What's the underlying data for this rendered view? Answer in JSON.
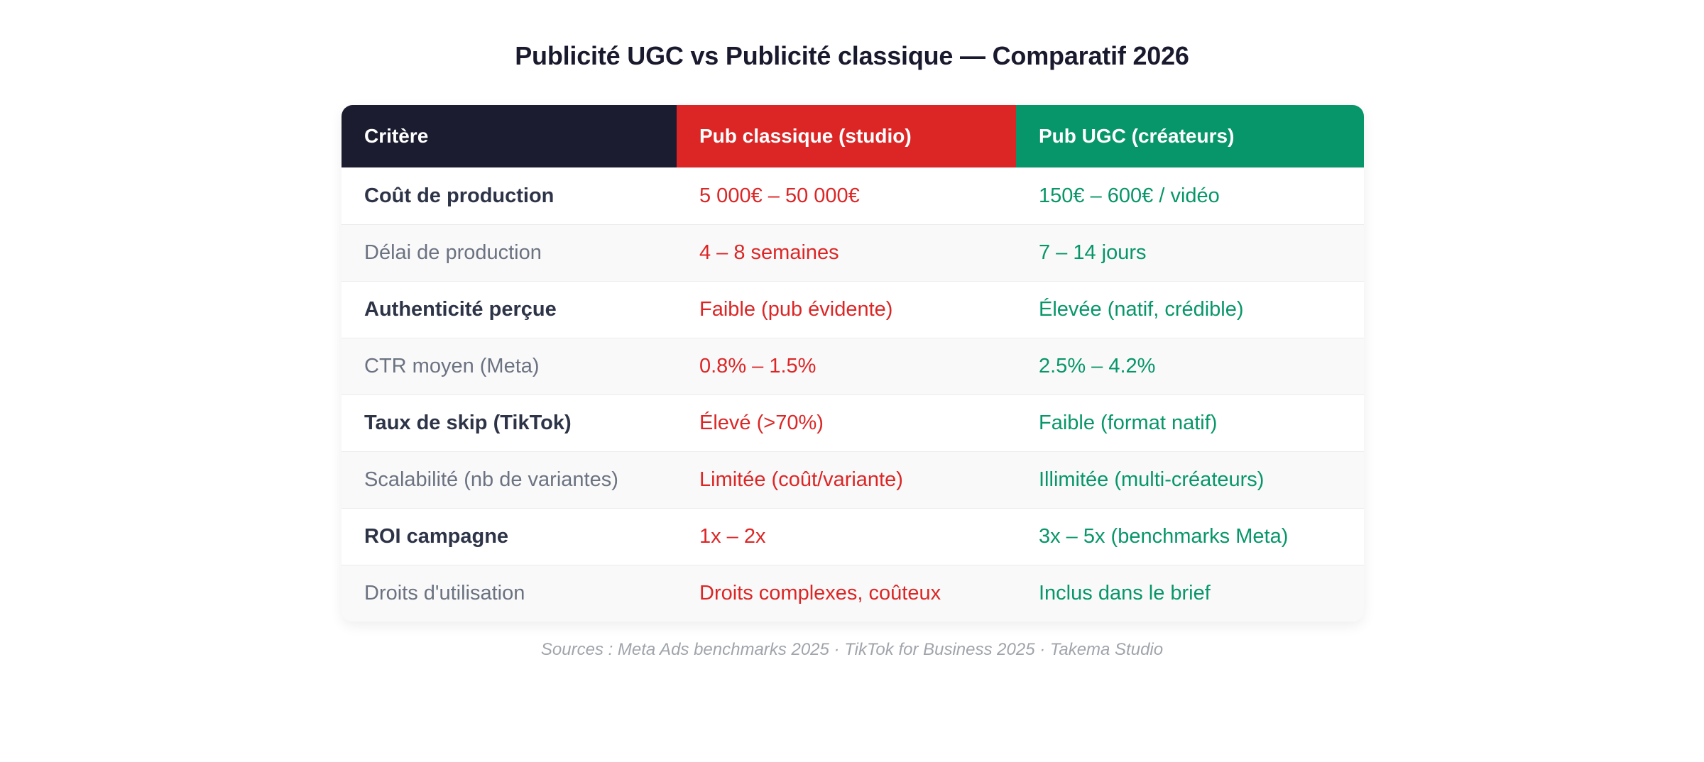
{
  "title": "Publicité UGC vs Publicité classique — Comparatif 2026",
  "table": {
    "headers": [
      "Critère",
      "Pub classique (studio)",
      "Pub UGC (créateurs)"
    ],
    "rows": [
      {
        "criterion": "Coût de production",
        "classic": "5 000€ – 50 000€",
        "ugc": "150€ – 600€ / vidéo",
        "emphasis": "bold"
      },
      {
        "criterion": "Délai de production",
        "classic": "4 – 8 semaines",
        "ugc": "7 – 14 jours",
        "emphasis": "light"
      },
      {
        "criterion": "Authenticité perçue",
        "classic": "Faible (pub évidente)",
        "ugc": "Élevée (natif, crédible)",
        "emphasis": "bold"
      },
      {
        "criterion": "CTR moyen (Meta)",
        "classic": "0.8% – 1.5%",
        "ugc": "2.5% – 4.2%",
        "emphasis": "light"
      },
      {
        "criterion": "Taux de skip (TikTok)",
        "classic": "Élevé (>70%)",
        "ugc": "Faible (format natif)",
        "emphasis": "bold"
      },
      {
        "criterion": "Scalabilité (nb de variantes)",
        "classic": "Limitée (coût/variante)",
        "ugc": "Illimitée (multi-créateurs)",
        "emphasis": "light"
      },
      {
        "criterion": "ROI campagne",
        "classic": "1x – 2x",
        "ugc": "3x – 5x (benchmarks Meta)",
        "emphasis": "bold"
      },
      {
        "criterion": "Droits d'utilisation",
        "classic": "Droits complexes, coûteux",
        "ugc": "Inclus dans le brief",
        "emphasis": "light"
      }
    ]
  },
  "sources": "Sources : Meta Ads benchmarks 2025 · TikTok for Business 2025 · Takema Studio",
  "colors": {
    "header_criterion": "#1b1c2f",
    "header_classic": "#dc2626",
    "header_ugc": "#079669",
    "classic_text": "#dc2626",
    "ugc_text": "#079669"
  }
}
